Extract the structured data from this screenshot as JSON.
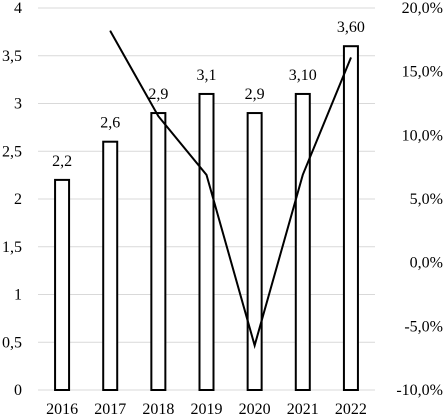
{
  "chart_data": {
    "type": "bar",
    "categories": [
      "2016",
      "2017",
      "2018",
      "2019",
      "2020",
      "2021",
      "2022"
    ],
    "series": [
      {
        "kind": "bar",
        "axis": "left",
        "values": [
          2.2,
          2.6,
          2.9,
          3.1,
          2.9,
          3.1,
          3.6
        ],
        "labels": [
          "2,2",
          "2,6",
          "2,9",
          "3,1",
          "2,9",
          "3,10",
          "3,60"
        ]
      },
      {
        "kind": "line",
        "axis": "right",
        "values": [
          null,
          18.2,
          11.5,
          6.9,
          -6.5,
          6.9,
          16.1
        ]
      }
    ],
    "y_left": {
      "lim": [
        0,
        4
      ],
      "ticks": [
        0,
        0.5,
        1,
        1.5,
        2,
        2.5,
        3,
        3.5,
        4
      ],
      "tick_labels": [
        "0",
        "0,5",
        "1",
        "1,5",
        "2",
        "2,5",
        "3",
        "3,5",
        "4"
      ]
    },
    "y_right": {
      "lim": [
        -10,
        20
      ],
      "ticks": [
        -10,
        -5,
        0,
        5,
        10,
        15,
        20
      ],
      "tick_labels": [
        "-10,0%",
        "-5,0%",
        "0,0%",
        "5,0%",
        "10,0%",
        "15,0%",
        "20,0%"
      ]
    },
    "grid": true,
    "legend": "none",
    "colors": {
      "bar_fill": "#ffffff",
      "stroke": "#000000",
      "grid": "#d9d9d9"
    }
  }
}
